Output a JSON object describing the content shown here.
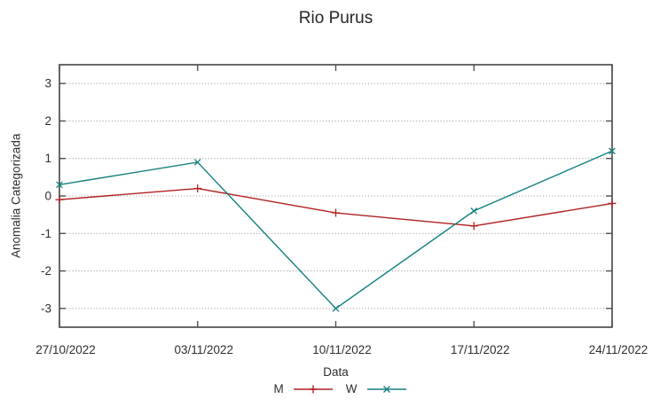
{
  "chart_data": {
    "type": "line",
    "title": "Rio Purus",
    "xlabel": "Data",
    "ylabel": "Anomalia Categorizada",
    "categories": [
      "27/10/2022",
      "03/11/2022",
      "10/11/2022",
      "17/11/2022",
      "24/11/2022"
    ],
    "series": [
      {
        "name": "M",
        "color": "#b02020",
        "marker": "plus",
        "values": [
          -0.1,
          0.2,
          -0.45,
          -0.8,
          -0.2
        ]
      },
      {
        "name": "W",
        "color": "#127f7f",
        "marker": "cross",
        "values": [
          0.3,
          0.9,
          -3.0,
          -0.4,
          1.2
        ]
      }
    ],
    "ylim": [
      -3.5,
      3.5
    ],
    "yticks": [
      3,
      2,
      1,
      0,
      -1,
      -2,
      -3
    ],
    "grid": "horizontal-dotted",
    "legend_position": "bottom-center",
    "colors": {
      "axis": "#4f4f4f",
      "grid": "#aaaaaa",
      "text": "#2e2e2e"
    }
  }
}
